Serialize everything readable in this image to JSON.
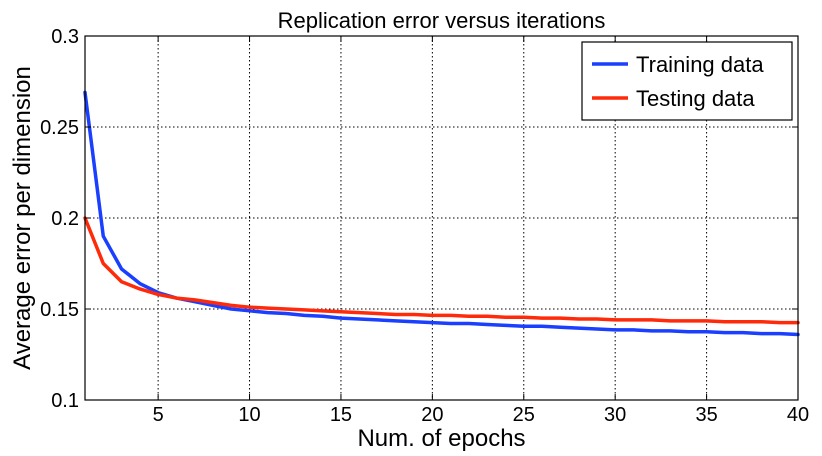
{
  "chart_data": {
    "type": "line",
    "title": "Replication error versus iterations",
    "xlabel": "Num. of epochs",
    "ylabel": "Average error per dimension",
    "xlim": [
      1,
      40
    ],
    "ylim": [
      0.1,
      0.3
    ],
    "x_ticks": [
      5,
      10,
      15,
      20,
      25,
      30,
      35,
      40
    ],
    "x_tick_labels": [
      "5",
      "10",
      "15",
      "20",
      "25",
      "30",
      "35",
      "40"
    ],
    "y_ticks": [
      0.1,
      0.15,
      0.2,
      0.25,
      0.3
    ],
    "y_tick_labels": [
      "0.1",
      "0.15",
      "0.2",
      "0.25",
      "0.3"
    ],
    "grid": true,
    "legend_position": "top-right",
    "x": [
      1,
      2,
      3,
      4,
      5,
      6,
      7,
      8,
      9,
      10,
      11,
      12,
      13,
      14,
      15,
      16,
      17,
      18,
      19,
      20,
      21,
      22,
      23,
      24,
      25,
      26,
      27,
      28,
      29,
      30,
      31,
      32,
      33,
      34,
      35,
      36,
      37,
      38,
      39,
      40
    ],
    "series": [
      {
        "name": "Training data",
        "color": "#1a3fff",
        "values": [
          0.269,
          0.19,
          0.172,
          0.164,
          0.159,
          0.156,
          0.154,
          0.152,
          0.15,
          0.149,
          0.148,
          0.1475,
          0.1465,
          0.146,
          0.145,
          0.1445,
          0.144,
          0.1435,
          0.143,
          0.1425,
          0.142,
          0.142,
          0.1415,
          0.141,
          0.1405,
          0.1405,
          0.14,
          0.1395,
          0.139,
          0.1385,
          0.1385,
          0.138,
          0.138,
          0.1375,
          0.1375,
          0.137,
          0.137,
          0.1365,
          0.1365,
          0.136
        ]
      },
      {
        "name": "Testing data",
        "color": "#ff2a0a",
        "values": [
          0.2,
          0.175,
          0.165,
          0.161,
          0.158,
          0.156,
          0.155,
          0.1535,
          0.152,
          0.151,
          0.1505,
          0.15,
          0.1495,
          0.149,
          0.1485,
          0.148,
          0.1475,
          0.147,
          0.147,
          0.1465,
          0.1465,
          0.146,
          0.146,
          0.1455,
          0.1455,
          0.145,
          0.145,
          0.1445,
          0.1445,
          0.144,
          0.144,
          0.144,
          0.1435,
          0.1435,
          0.1435,
          0.143,
          0.143,
          0.143,
          0.1425,
          0.1425
        ]
      }
    ]
  }
}
